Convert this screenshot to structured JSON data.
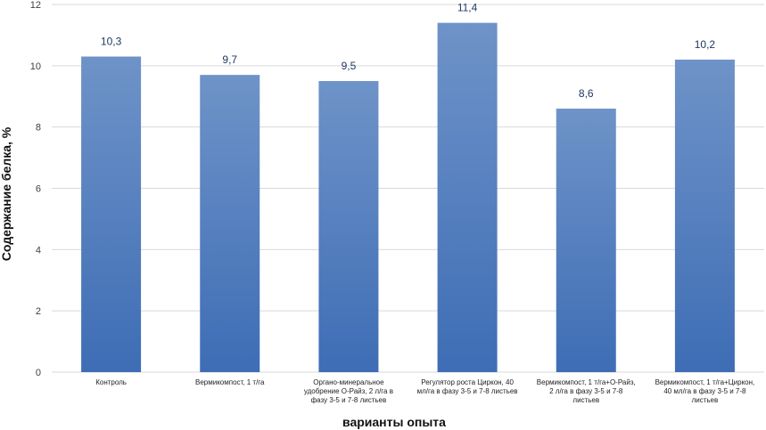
{
  "chart_data": {
    "type": "bar",
    "title": "",
    "xlabel": "варианты опыта",
    "ylabel": "Содержание белка, %",
    "ylim": [
      0,
      12
    ],
    "yticks": [
      "0",
      "2",
      "4",
      "6",
      "8",
      "10",
      "12"
    ],
    "grid": true,
    "categories": [
      [
        "Контроль"
      ],
      [
        "Вермикомпост, 1 т/га"
      ],
      [
        "Органо-минеральное",
        "удобрение О-Райз, 2 л/га в",
        "фазу 3-5 и 7-8 листьев"
      ],
      [
        "Регулятор роста Циркон, 40",
        "мл/га в фазу 3-5 и 7-8 листьев"
      ],
      [
        "Вермикомпост, 1 т/га+О-Райз,",
        "2 л/га в фазу 3-5 и 7-8",
        "листьев"
      ],
      [
        "Вермикомпост, 1 т/га+Циркон,",
        "40 мл/га в фазу 3-5 и 7-8",
        "листьев"
      ]
    ],
    "values": [
      10.3,
      9.7,
      9.5,
      11.4,
      8.6,
      10.2
    ],
    "data_labels": [
      "10,3",
      "9,7",
      "9,5",
      "11,4",
      "8,6",
      "10,2"
    ],
    "colors": {
      "bar_top": "#6e93c8",
      "bar_bottom": "#3e6db5",
      "grid": "#d9d9d9",
      "label": "#1f3864"
    }
  }
}
